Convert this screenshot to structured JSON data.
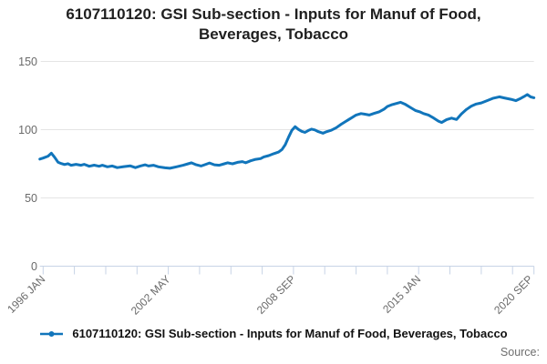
{
  "title": {
    "line1": "6107110120: GSI Sub-section - Inputs for Manuf of Food,",
    "line2": "Beverages, Tobacco",
    "full": "6107110120: GSI Sub-section - Inputs for Manuf of Food, Beverages, Tobacco"
  },
  "legend": {
    "label": "6107110120: GSI Sub-section - Inputs for Manuf of Food, Beverages, Tobacco",
    "marker": "line-with-dot-marker"
  },
  "source": {
    "label": "Source:"
  },
  "colors": {
    "line": "#1175bb",
    "grid": "#e4e4e4",
    "axis": "#c7d3e6",
    "tick_label": "#6a6a6a",
    "title_text": "#1f1f1f",
    "legend_text": "#111111",
    "source_text": "#6e6e6e"
  },
  "chart_data": {
    "type": "line",
    "title": "6107110120: GSI Sub-section - Inputs for Manuf of Food, Beverages, Tobacco",
    "xlabel": "",
    "ylabel": "",
    "ylim": [
      0,
      150
    ],
    "yticks": [
      0,
      50,
      100,
      150
    ],
    "grid": "horizontal-only",
    "legend_position": "bottom",
    "x_axis_type": "monthly time axis, months counted from 1996 JAN = 0",
    "x_range": [
      "1995 NOV",
      "2020 NOV"
    ],
    "x_tick_labels": [
      "1996 JAN",
      "2002 MAY",
      "2008 SEP",
      "2015 JAN",
      "2020 SEP"
    ],
    "x_tick_label_months": [
      0,
      76,
      152,
      228,
      296
    ],
    "minor_tick_interval_months": 19,
    "series": [
      {
        "name": "6107110120: GSI Sub-section - Inputs for Manuf of Food, Beverages, Tobacco",
        "points_format": "[months_since_1996_JAN, index_value]",
        "points": [
          [
            -2,
            78.5
          ],
          [
            0,
            79.2
          ],
          [
            3,
            80.6
          ],
          [
            5,
            82.8
          ],
          [
            7,
            79.8
          ],
          [
            9,
            76.2
          ],
          [
            11,
            75.2
          ],
          [
            13,
            74.5
          ],
          [
            15,
            75.1
          ],
          [
            17,
            73.9
          ],
          [
            20,
            74.6
          ],
          [
            23,
            73.9
          ],
          [
            25,
            74.6
          ],
          [
            28,
            73.2
          ],
          [
            31,
            74.0
          ],
          [
            34,
            73.2
          ],
          [
            36,
            73.9
          ],
          [
            39,
            72.8
          ],
          [
            42,
            73.4
          ],
          [
            45,
            72.2
          ],
          [
            49,
            72.9
          ],
          [
            53,
            73.5
          ],
          [
            56,
            72.2
          ],
          [
            59,
            73.4
          ],
          [
            62,
            74.3
          ],
          [
            64,
            73.4
          ],
          [
            67,
            73.9
          ],
          [
            70,
            72.8
          ],
          [
            74,
            72.1
          ],
          [
            77,
            71.7
          ],
          [
            81,
            72.8
          ],
          [
            85,
            73.9
          ],
          [
            88,
            75.0
          ],
          [
            90,
            75.7
          ],
          [
            93,
            74.3
          ],
          [
            96,
            73.4
          ],
          [
            98,
            74.3
          ],
          [
            101,
            75.6
          ],
          [
            104,
            74.3
          ],
          [
            107,
            73.9
          ],
          [
            110,
            75.0
          ],
          [
            112,
            75.7
          ],
          [
            115,
            75.0
          ],
          [
            118,
            76.1
          ],
          [
            121,
            76.6
          ],
          [
            123,
            75.7
          ],
          [
            126,
            77.2
          ],
          [
            129,
            78.3
          ],
          [
            132,
            78.8
          ],
          [
            134,
            80.1
          ],
          [
            137,
            81.0
          ],
          [
            140,
            82.4
          ],
          [
            143,
            83.6
          ],
          [
            145,
            85.5
          ],
          [
            147,
            89.0
          ],
          [
            149,
            94.5
          ],
          [
            151,
            99.5
          ],
          [
            153,
            102.2
          ],
          [
            155,
            100.2
          ],
          [
            157,
            98.8
          ],
          [
            159,
            98.0
          ],
          [
            161,
            99.4
          ],
          [
            163,
            100.4
          ],
          [
            165,
            99.8
          ],
          [
            167,
            98.6
          ],
          [
            170,
            97.4
          ],
          [
            172,
            98.5
          ],
          [
            175,
            99.6
          ],
          [
            178,
            101.5
          ],
          [
            181,
            104.0
          ],
          [
            184,
            106.3
          ],
          [
            187,
            108.5
          ],
          [
            190,
            110.7
          ],
          [
            193,
            111.8
          ],
          [
            195,
            111.4
          ],
          [
            198,
            110.7
          ],
          [
            201,
            111.9
          ],
          [
            204,
            113.1
          ],
          [
            207,
            115.1
          ],
          [
            209,
            117.0
          ],
          [
            212,
            118.4
          ],
          [
            215,
            119.4
          ],
          [
            217,
            120.1
          ],
          [
            220,
            118.5
          ],
          [
            223,
            116.3
          ],
          [
            226,
            114.1
          ],
          [
            229,
            112.9
          ],
          [
            231,
            111.8
          ],
          [
            234,
            110.7
          ],
          [
            237,
            108.6
          ],
          [
            240,
            106.3
          ],
          [
            242,
            105.3
          ],
          [
            245,
            107.4
          ],
          [
            248,
            108.5
          ],
          [
            251,
            107.5
          ],
          [
            254,
            111.6
          ],
          [
            257,
            114.8
          ],
          [
            260,
            117.3
          ],
          [
            263,
            118.8
          ],
          [
            266,
            119.6
          ],
          [
            269,
            121.0
          ],
          [
            273,
            122.9
          ],
          [
            277,
            124.1
          ],
          [
            280,
            123.3
          ],
          [
            284,
            122.3
          ],
          [
            287,
            121.3
          ],
          [
            290,
            122.9
          ],
          [
            292,
            124.3
          ],
          [
            294,
            125.7
          ],
          [
            296,
            124.0
          ],
          [
            298,
            123.4
          ]
        ]
      }
    ]
  }
}
